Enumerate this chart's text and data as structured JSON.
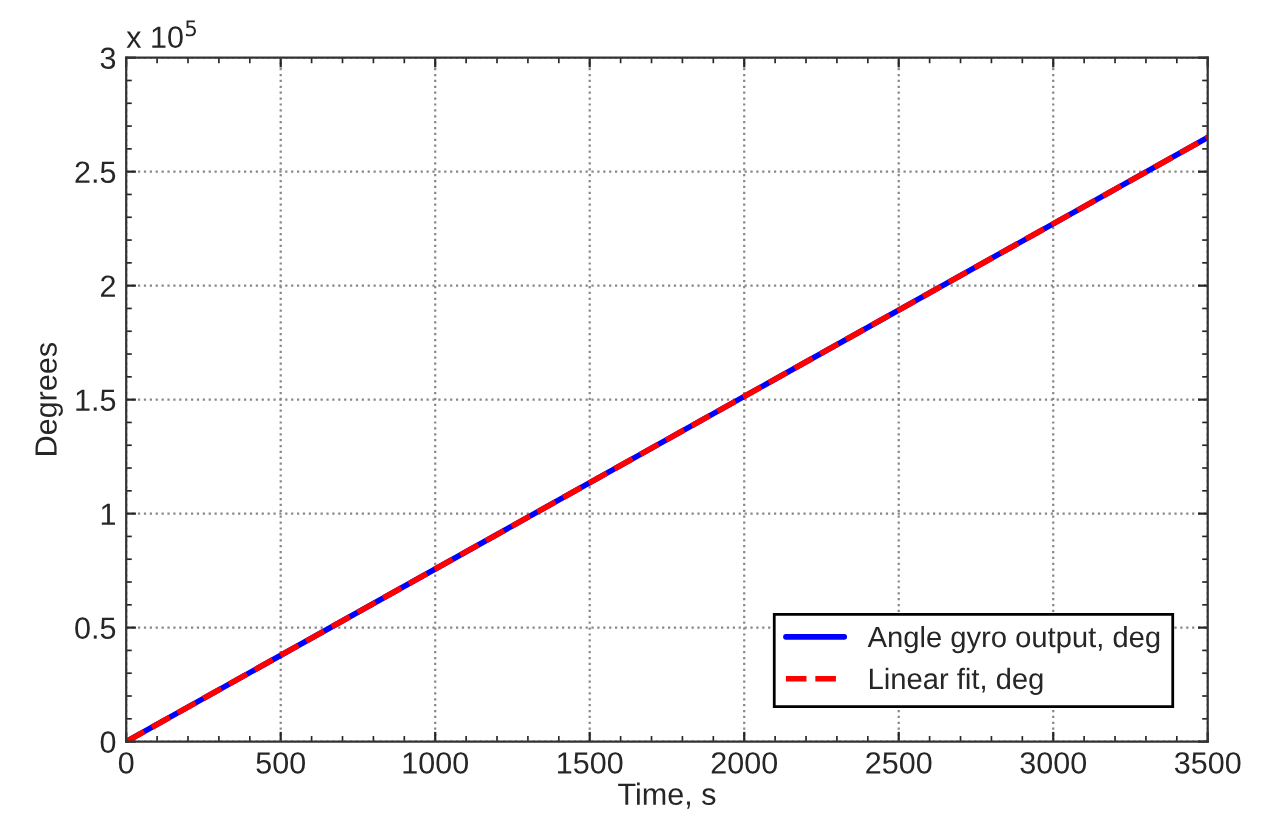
{
  "chart_data": {
    "type": "line",
    "xlabel": "Time, s",
    "ylabel": "Degrees",
    "x": [
      0,
      3500
    ],
    "series": [
      {
        "name": "Angle gyro output, deg",
        "color": "#0000ff",
        "values": [
          0,
          2.65
        ],
        "line_style": "solid"
      },
      {
        "name": "Linear fit, deg",
        "color": "#ff0000",
        "values": [
          0,
          2.65
        ],
        "line_style": "dashed"
      }
    ],
    "xlim": [
      0,
      3500
    ],
    "xticks": [
      0,
      500,
      1000,
      1500,
      2000,
      2500,
      3000,
      3500
    ],
    "ylim": [
      0,
      3
    ],
    "yticks": [
      0,
      0.5,
      1,
      1.5,
      2,
      2.5,
      3
    ],
    "annotations": [
      "x 10$^{5}$"
    ],
    "grid": true,
    "legend": "bottom right"
  }
}
